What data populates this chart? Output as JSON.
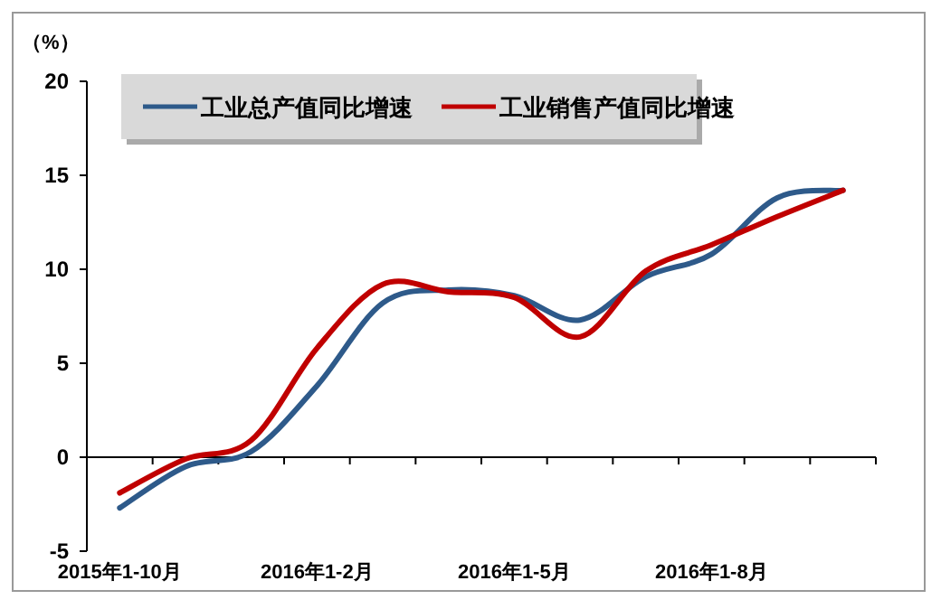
{
  "chart_data": {
    "type": "line",
    "ylabel": "（%）",
    "categories": [
      "2015年1-10月",
      null,
      null,
      "2016年1-2月",
      null,
      null,
      "2016年1-5月",
      null,
      null,
      "2016年1-8月",
      null,
      null
    ],
    "series": [
      {
        "name": "工业总产值同比增速",
        "color": "#2e5a8a",
        "values": [
          -2.7,
          -0.5,
          0.3,
          3.8,
          8.2,
          8.9,
          8.6,
          7.3,
          9.6,
          10.8,
          13.8,
          14.2
        ]
      },
      {
        "name": "工业销售产值同比增速",
        "color": "#c00000",
        "values": [
          -1.9,
          -0.1,
          0.9,
          5.8,
          9.2,
          8.8,
          8.5,
          6.4,
          9.9,
          11.3,
          12.8,
          14.2
        ]
      }
    ],
    "ylim": [
      -5,
      20
    ],
    "yticks": [
      -5,
      0,
      5,
      10,
      15,
      20
    ],
    "legend": "top left"
  }
}
